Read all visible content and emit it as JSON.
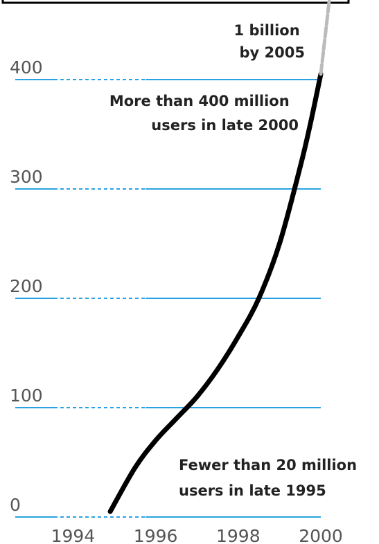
{
  "chart_data": {
    "type": "line",
    "title": "",
    "xlabel": "",
    "ylabel": "",
    "xlim": [
      1992.6,
      2000
    ],
    "ylim": [
      0,
      400
    ],
    "grid": true,
    "x_ticks": [
      "1994",
      "1996",
      "1998",
      "2000"
    ],
    "y_ticks": [
      "0",
      "100",
      "200",
      "300",
      "400"
    ],
    "series": [
      {
        "style": "solid",
        "color": "#000000",
        "x": [
          1994.9,
          1995.5,
          1996.0,
          1996.5,
          1997.0,
          1997.5,
          1998.0,
          1998.5,
          1999.0,
          1999.5,
          1999.75,
          2000.0
        ],
        "y": [
          5,
          45,
          70,
          90,
          110,
          135,
          165,
          200,
          250,
          320,
          360,
          405
        ]
      },
      {
        "style": "dashed-extension",
        "color": "#bbbbbb",
        "x": [
          2000.0,
          2000.35
        ],
        "y": [
          405,
          520
        ]
      }
    ],
    "annotations": [
      {
        "lines": [
          "1 billion",
          "by 2005"
        ]
      },
      {
        "lines": [
          "More than 400 million",
          "users in late 2000"
        ]
      },
      {
        "lines": [
          "Fewer than 20 million",
          "users in late 1995"
        ]
      }
    ],
    "colors": {
      "grid": "#29a3e0",
      "line": "#000000",
      "extension": "#bbbbbb",
      "frame": "#000000"
    }
  }
}
